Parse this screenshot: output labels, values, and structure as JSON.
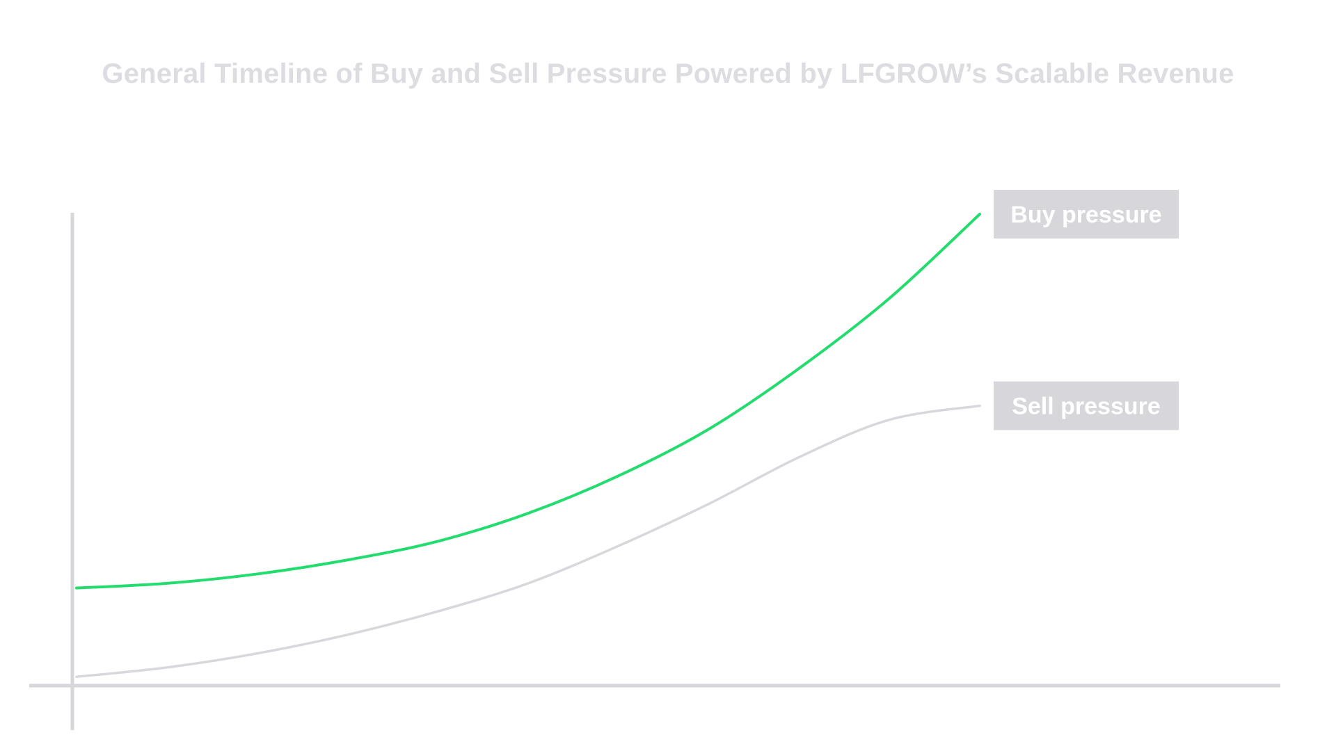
{
  "title": "General Timeline of Buy and Sell Pressure Powered by LFGROW’s Scalable Revenue",
  "colors": {
    "buy": "#22dc6e",
    "sell": "#d7d7dc",
    "axis": "#d6d6db",
    "label_box": "#d6d6db",
    "title": "#dcdce1"
  },
  "chart_data": {
    "type": "line",
    "title": "General Timeline of Buy and Sell Pressure Powered by LFGROW’s Scalable Revenue",
    "xlabel": "",
    "ylabel": "",
    "xlim": [
      0,
      10
    ],
    "ylim": [
      0,
      10
    ],
    "grid": false,
    "legend": "right, at line ends",
    "x": [
      0,
      1,
      2,
      3,
      4,
      5,
      6,
      7,
      8,
      9,
      10
    ],
    "series": [
      {
        "name": "Buy pressure",
        "color": "#22dc6e",
        "values": [
          2.0,
          2.1,
          2.3,
          2.6,
          3.0,
          3.6,
          4.4,
          5.4,
          6.7,
          8.2,
          10.0
        ]
      },
      {
        "name": "Sell pressure",
        "color": "#d7d7dc",
        "values": [
          0.1,
          0.3,
          0.6,
          1.0,
          1.5,
          2.1,
          2.9,
          3.8,
          4.8,
          5.6,
          5.9
        ]
      }
    ]
  }
}
